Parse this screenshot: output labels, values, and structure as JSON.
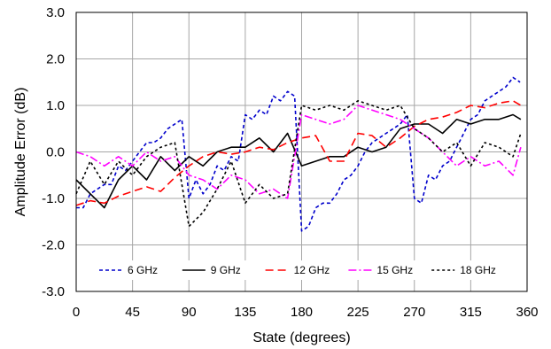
{
  "chart_data": {
    "type": "line",
    "xlabel": "State (degrees)",
    "ylabel": "Amplitude Error (dB)",
    "xlim": [
      0,
      360
    ],
    "ylim": [
      -3,
      3
    ],
    "x_ticks": [
      0,
      45,
      90,
      135,
      180,
      225,
      270,
      315,
      360
    ],
    "y_ticks": [
      3,
      2,
      1,
      0,
      -1,
      -2,
      -3
    ],
    "x_tick_labels": [
      "0",
      "45",
      "90",
      "135",
      "180",
      "225",
      "270",
      "315",
      "360"
    ],
    "y_tick_labels": [
      "3.0",
      "2.0",
      "1.0",
      "0.0",
      "-1.0",
      "-2.0",
      "-3.0"
    ],
    "grid": true,
    "legend_position": "bottom-inside",
    "series": [
      {
        "name": "6 GHz",
        "color": "#0000cc",
        "dash": "4,3",
        "x": [
          0,
          5.6,
          11.3,
          16.9,
          22.5,
          28.1,
          33.8,
          39.4,
          45,
          50.6,
          56.3,
          61.9,
          67.5,
          73.1,
          78.8,
          84.4,
          90,
          95.6,
          101.3,
          106.9,
          112.5,
          118.1,
          123.8,
          129.4,
          135,
          140.6,
          146.3,
          151.9,
          157.5,
          163.1,
          168.8,
          174.4,
          180,
          185.6,
          191.3,
          196.9,
          202.5,
          208.1,
          213.8,
          219.4,
          225,
          230.6,
          236.3,
          241.9,
          247.5,
          253.1,
          258.8,
          264.4,
          270,
          275.6,
          281.3,
          286.9,
          292.5,
          298.1,
          303.8,
          309.4,
          315,
          320.6,
          326.3,
          331.9,
          337.5,
          343.1,
          348.8,
          354.4
        ],
        "y": [
          -1.2,
          -1.2,
          -0.9,
          -0.8,
          -0.7,
          -0.7,
          -0.3,
          -0.4,
          -0.2,
          0.0,
          0.2,
          0.2,
          0.3,
          0.5,
          0.6,
          0.7,
          -1.0,
          -0.6,
          -0.9,
          -0.7,
          -0.3,
          -0.4,
          -0.1,
          -0.2,
          0.8,
          0.7,
          0.9,
          0.8,
          1.2,
          1.1,
          1.3,
          1.2,
          -1.7,
          -1.6,
          -1.2,
          -1.1,
          -1.1,
          -0.9,
          -0.6,
          -0.5,
          -0.3,
          0.0,
          0.2,
          0.3,
          0.4,
          0.5,
          0.6,
          0.8,
          -1.0,
          -1.1,
          -0.5,
          -0.6,
          -0.3,
          -0.2,
          0.1,
          0.4,
          0.7,
          0.8,
          1.1,
          1.2,
          1.3,
          1.4,
          1.6,
          1.5
        ]
      },
      {
        "name": "9 GHz",
        "color": "#000000",
        "dash": "none",
        "x": [
          0,
          11.25,
          22.5,
          33.75,
          45,
          56.25,
          67.5,
          78.75,
          90,
          101.25,
          112.5,
          123.75,
          135,
          146.25,
          157.5,
          168.75,
          180,
          191.25,
          202.5,
          213.75,
          225,
          236.25,
          247.5,
          258.75,
          270,
          281.25,
          292.5,
          303.75,
          315,
          326.25,
          337.5,
          348.75,
          355
        ],
        "y": [
          -0.6,
          -0.9,
          -1.2,
          -0.6,
          -0.3,
          -0.6,
          -0.1,
          -0.4,
          -0.1,
          -0.3,
          0.0,
          0.1,
          0.1,
          0.3,
          0.0,
          0.4,
          -0.3,
          -0.2,
          -0.1,
          -0.1,
          0.1,
          0.0,
          0.1,
          0.5,
          0.6,
          0.6,
          0.4,
          0.7,
          0.6,
          0.7,
          0.7,
          0.8,
          0.7
        ]
      },
      {
        "name": "12 GHz",
        "color": "#ff0000",
        "dash": "9,5",
        "x": [
          0,
          11.25,
          22.5,
          33.75,
          45,
          56.25,
          67.5,
          78.75,
          90,
          101.25,
          112.5,
          123.75,
          135,
          146.25,
          157.5,
          168.75,
          180,
          191.25,
          202.5,
          213.75,
          225,
          236.25,
          247.5,
          258.75,
          270,
          281.25,
          292.5,
          303.75,
          315,
          326.25,
          337.5,
          348.75,
          355
        ],
        "y": [
          -1.15,
          -1.05,
          -1.1,
          -0.95,
          -0.85,
          -0.75,
          -0.85,
          -0.55,
          -0.3,
          -0.1,
          0.0,
          -0.05,
          0.0,
          0.1,
          0.05,
          0.2,
          0.3,
          0.35,
          -0.2,
          -0.2,
          0.4,
          0.35,
          0.1,
          0.3,
          0.55,
          0.7,
          0.75,
          0.85,
          1.0,
          0.95,
          1.05,
          1.1,
          1.0
        ]
      },
      {
        "name": "15 GHz",
        "color": "#ff00ff",
        "dash": "9,3,2,3",
        "x": [
          0,
          11.25,
          22.5,
          33.75,
          45,
          56.25,
          67.5,
          78.75,
          90,
          101.25,
          112.5,
          123.75,
          135,
          146.25,
          157.5,
          168.75,
          180,
          191.25,
          202.5,
          213.75,
          225,
          236.25,
          247.5,
          258.75,
          270,
          281.25,
          292.5,
          303.75,
          315,
          326.25,
          337.5,
          348.75,
          355
        ],
        "y": [
          0.0,
          -0.1,
          -0.3,
          -0.1,
          -0.3,
          0.0,
          -0.2,
          -0.1,
          -0.5,
          -0.6,
          -0.8,
          -0.5,
          -0.6,
          -0.9,
          -0.8,
          -1.0,
          0.8,
          0.7,
          0.6,
          0.7,
          1.0,
          0.9,
          0.8,
          0.7,
          0.5,
          0.3,
          0.0,
          -0.3,
          -0.1,
          -0.3,
          -0.2,
          -0.5,
          0.1
        ]
      },
      {
        "name": "18 GHz",
        "color": "#000000",
        "dash": "3,3",
        "x": [
          0,
          11.25,
          22.5,
          33.75,
          45,
          56.25,
          67.5,
          78.75,
          90,
          101.25,
          112.5,
          123.75,
          135,
          146.25,
          157.5,
          168.75,
          180,
          191.25,
          202.5,
          213.75,
          225,
          236.25,
          247.5,
          258.75,
          270,
          281.25,
          292.5,
          303.75,
          315,
          326.25,
          337.5,
          348.75,
          355
        ],
        "y": [
          -0.9,
          -0.2,
          -0.7,
          -0.2,
          -0.5,
          -0.1,
          0.1,
          0.2,
          -1.6,
          -1.3,
          -0.8,
          -0.2,
          -1.1,
          -0.7,
          -1.0,
          -0.9,
          1.0,
          0.9,
          1.0,
          0.9,
          1.1,
          1.0,
          0.9,
          1.0,
          0.5,
          0.3,
          0.0,
          0.2,
          -0.3,
          0.2,
          0.1,
          -0.1,
          0.4
        ]
      }
    ]
  }
}
